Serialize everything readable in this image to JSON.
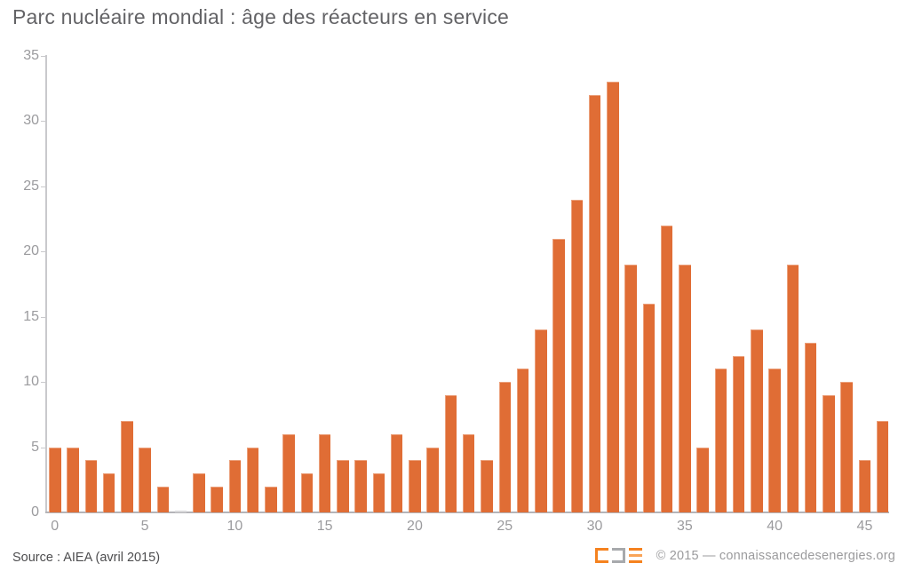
{
  "title": "Parc nucléaire mondial : âge des réacteurs en service",
  "chart_data": {
    "type": "bar",
    "title": "Parc nucléaire mondial : âge des réacteurs en service",
    "xlabel": "",
    "ylabel": "",
    "ages": [
      0,
      1,
      2,
      3,
      4,
      5,
      6,
      7,
      8,
      9,
      10,
      11,
      12,
      13,
      14,
      15,
      16,
      17,
      18,
      19,
      20,
      21,
      22,
      23,
      24,
      25,
      26,
      27,
      28,
      29,
      30,
      31,
      32,
      33,
      34,
      35,
      36,
      37,
      38,
      39,
      40,
      41,
      42,
      43,
      44,
      45,
      46
    ],
    "values": [
      5,
      5,
      4,
      3,
      7,
      5,
      2,
      0,
      3,
      2,
      4,
      5,
      2,
      6,
      3,
      6,
      4,
      4,
      3,
      6,
      4,
      5,
      9,
      6,
      4,
      10,
      11,
      14,
      21,
      24,
      32,
      33,
      19,
      16,
      22,
      19,
      5,
      11,
      12,
      14,
      11,
      19,
      13,
      9,
      10,
      4,
      7
    ],
    "ylim": [
      0,
      35
    ],
    "yticks": [
      0,
      5,
      10,
      15,
      20,
      25,
      30,
      35
    ],
    "xticks_shown": [
      0,
      5,
      10,
      15,
      20,
      25,
      30,
      35,
      40,
      45
    ],
    "grid": false,
    "legend": "none",
    "bar_color": "#E06D35"
  },
  "footer": {
    "source": "Source : AIEA (avril 2015)",
    "copyright": "© 2015 — connaissancedesenergies.org"
  },
  "logo": {
    "name": "connaissance-des-energies-logo",
    "orange": "#F5821F",
    "light_orange": "#F9A458",
    "gray": "#A7A9AC"
  },
  "colors": {
    "background": "#FFFFFF",
    "bar": "#E06D35",
    "zero_bar": "#D9D9DB",
    "title_text": "#636366",
    "axis_label_text": "#9B9B9E",
    "x_axis_line": "#B4B4B8",
    "y_axis_line": "#C9C9CC",
    "source_text": "#4D4D4F",
    "copyright_text": "#9B9B9D"
  }
}
